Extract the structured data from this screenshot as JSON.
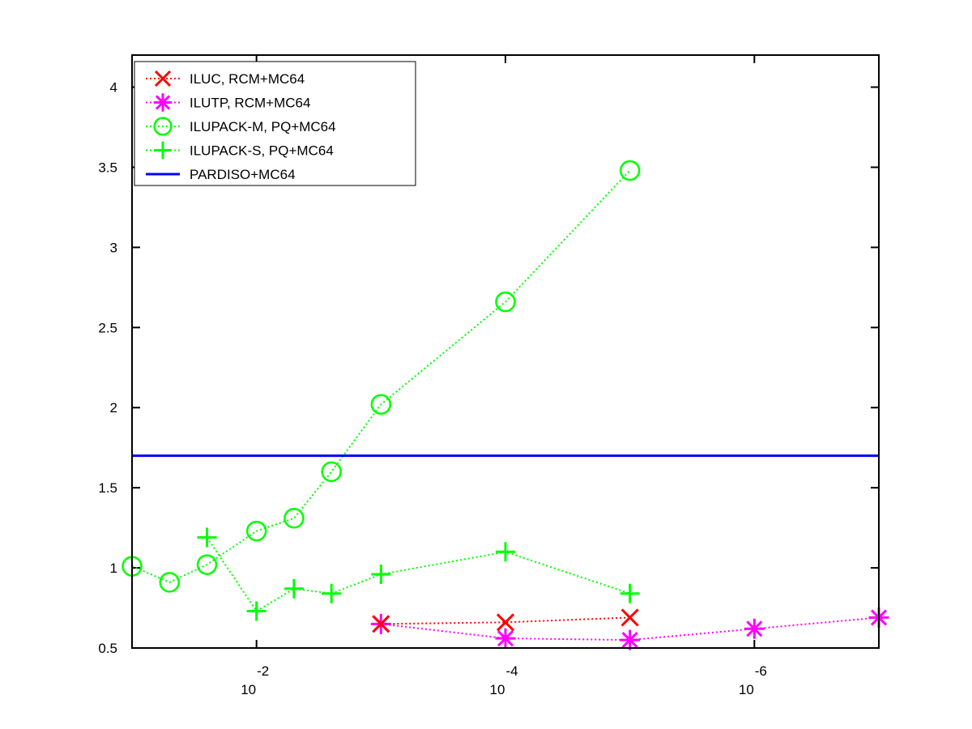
{
  "chart_data": {
    "type": "line",
    "title": "",
    "xlabel": "",
    "ylabel": "",
    "x_scale": "log",
    "x_reversed": true,
    "xlim": [
      0.1,
      1e-07
    ],
    "ylim": [
      0.5,
      4.2
    ],
    "x_ticks": [
      {
        "value": 0.01,
        "base": "10",
        "exp": "-2"
      },
      {
        "value": 0.0001,
        "base": "10",
        "exp": "-4"
      },
      {
        "value": 1e-06,
        "base": "10",
        "exp": "-6"
      }
    ],
    "y_ticks": [
      {
        "value": 0.5,
        "label": "0.5"
      },
      {
        "value": 1,
        "label": "1"
      },
      {
        "value": 1.5,
        "label": "1.5"
      },
      {
        "value": 2,
        "label": "2"
      },
      {
        "value": 2.5,
        "label": "2.5"
      },
      {
        "value": 3,
        "label": "3"
      },
      {
        "value": 3.5,
        "label": "3.5"
      },
      {
        "value": 4,
        "label": "4"
      }
    ],
    "legend_position": "top-left",
    "grid": false,
    "series": [
      {
        "name": "ILUC, RCM+MC64",
        "color": "#ff0000",
        "marker": "x",
        "line": "dotted",
        "points": [
          [
            0.001,
            0.65
          ],
          [
            0.0001,
            0.66
          ],
          [
            1e-05,
            0.69
          ]
        ]
      },
      {
        "name": "ILUTP, RCM+MC64",
        "color": "#ff00ff",
        "marker": "star",
        "line": "dotted",
        "points": [
          [
            0.001,
            0.65
          ],
          [
            0.0001,
            0.56
          ],
          [
            1e-05,
            0.55
          ],
          [
            1e-06,
            0.62
          ],
          [
            1e-07,
            0.69
          ]
        ]
      },
      {
        "name": "ILUPACK-M, PQ+MC64",
        "color": "#00ff00",
        "marker": "circle",
        "line": "dotted",
        "points": [
          [
            0.1,
            1.01
          ],
          [
            0.05,
            0.91
          ],
          [
            0.025,
            1.02
          ],
          [
            0.01,
            1.23
          ],
          [
            0.005,
            1.31
          ],
          [
            0.0025,
            1.6
          ],
          [
            0.001,
            2.02
          ],
          [
            0.0001,
            2.66
          ],
          [
            1e-05,
            3.48
          ]
        ]
      },
      {
        "name": "ILUPACK-S, PQ+MC64",
        "color": "#00ff00",
        "marker": "plus",
        "line": "dotted",
        "points": [
          [
            0.025,
            1.19
          ],
          [
            0.01,
            0.73
          ],
          [
            0.005,
            0.87
          ],
          [
            0.0025,
            0.84
          ],
          [
            0.001,
            0.96
          ],
          [
            0.0001,
            1.1
          ],
          [
            1e-05,
            0.84
          ]
        ]
      },
      {
        "name": "PARDISO+MC64",
        "color": "#0000ff",
        "marker": "none",
        "line": "solid",
        "points": [
          [
            0.1,
            1.7
          ],
          [
            1e-07,
            1.7
          ]
        ]
      }
    ]
  }
}
